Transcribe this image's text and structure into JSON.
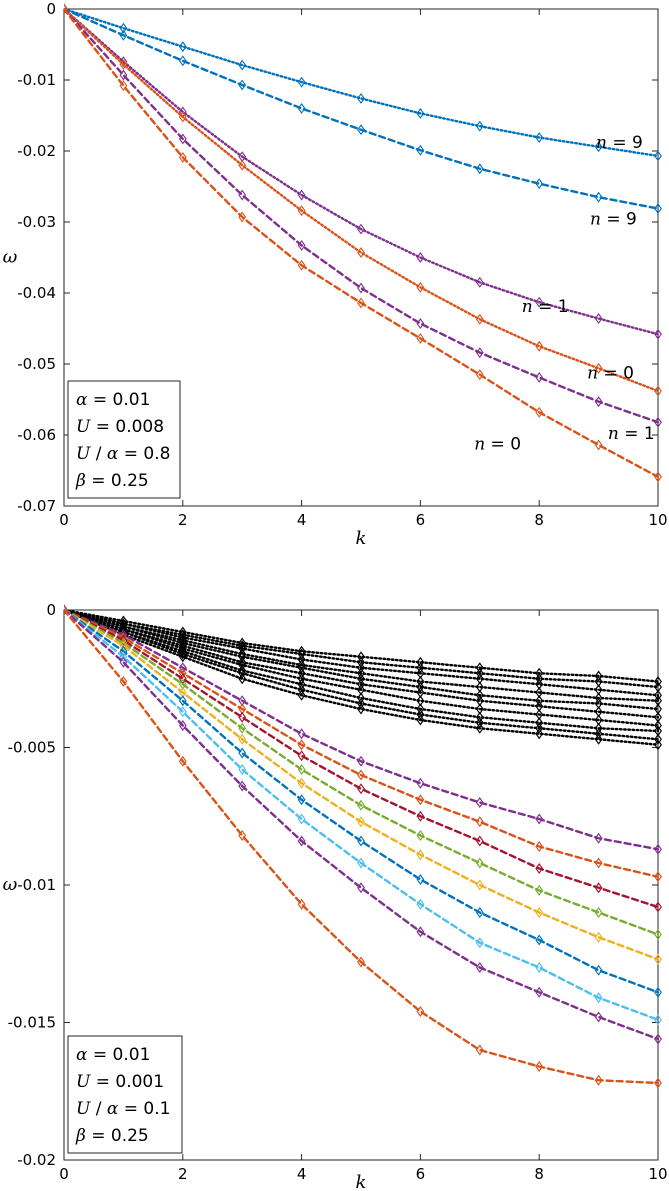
{
  "chart_data": [
    {
      "type": "line",
      "xlabel": "k",
      "ylabel": "ω",
      "xlim": [
        0,
        10
      ],
      "ylim": [
        -0.07,
        0
      ],
      "xticks": [
        "0",
        "2",
        "4",
        "6",
        "8",
        "10"
      ],
      "yticks": [
        "0",
        "-0.01",
        "-0.02",
        "-0.03",
        "-0.04",
        "-0.05",
        "-0.06",
        "-0.07"
      ],
      "grid": false,
      "legend_box": {
        "placement": "bottom-left",
        "lines": [
          {
            "sym": "α",
            "rest": " = 0.01"
          },
          {
            "sym": "U",
            "rest": " = 0.008"
          },
          {
            "sym": "U",
            "mid": " / ",
            "sym2": "α",
            "rest": " = 0.8"
          },
          {
            "sym": "β",
            "rest": " = 0.25"
          }
        ]
      },
      "x": [
        0,
        1,
        2,
        3,
        4,
        5,
        6,
        7,
        8,
        9,
        10
      ],
      "series": [
        {
          "color": "#0072BD",
          "style": "dotted",
          "values": [
            0,
            -0.0027,
            -0.0053,
            -0.0079,
            -0.0103,
            -0.0126,
            -0.0147,
            -0.0165,
            -0.0181,
            -0.0194,
            -0.0207
          ]
        },
        {
          "color": "#0072BD",
          "style": "dashed",
          "values": [
            0,
            -0.0037,
            -0.0073,
            -0.0107,
            -0.014,
            -0.017,
            -0.0199,
            -0.0225,
            -0.0246,
            -0.0265,
            -0.0281
          ]
        },
        {
          "color": "#7E2F8E",
          "style": "dotted",
          "values": [
            0,
            -0.0074,
            -0.0145,
            -0.0208,
            -0.0262,
            -0.031,
            -0.035,
            -0.0385,
            -0.0413,
            -0.0436,
            -0.0458
          ]
        },
        {
          "color": "#D95319",
          "style": "dotted",
          "values": [
            0,
            -0.0078,
            -0.0152,
            -0.022,
            -0.0284,
            -0.0343,
            -0.0392,
            -0.0437,
            -0.0475,
            -0.0506,
            -0.0538
          ]
        },
        {
          "color": "#7E2F8E",
          "style": "dashed",
          "values": [
            0,
            -0.0093,
            -0.0183,
            -0.0262,
            -0.0333,
            -0.0393,
            -0.0443,
            -0.0484,
            -0.0519,
            -0.0553,
            -0.0582
          ]
        },
        {
          "color": "#D95319",
          "style": "dashed",
          "values": [
            0,
            -0.0108,
            -0.0209,
            -0.0293,
            -0.0361,
            -0.0414,
            -0.0464,
            -0.0515,
            -0.0568,
            -0.0614,
            -0.0659
          ]
        }
      ],
      "annotations": [
        {
          "text": "n = 9",
          "x": 9.35,
          "y": -0.0187
        },
        {
          "text": "n = 9",
          "x": 9.25,
          "y": -0.0295
        },
        {
          "text": "n = 1",
          "x": 8.1,
          "y": -0.0418
        },
        {
          "text": "n = 0",
          "x": 9.2,
          "y": -0.0512
        },
        {
          "text": "n = 1",
          "x": 9.55,
          "y": -0.0597
        },
        {
          "text": "n = 0",
          "x": 7.3,
          "y": -0.0612
        }
      ]
    },
    {
      "type": "line",
      "xlabel": "k",
      "ylabel": "ω",
      "xlim": [
        0,
        10
      ],
      "ylim": [
        -0.02,
        0
      ],
      "xticks": [
        "0",
        "2",
        "4",
        "6",
        "8",
        "10"
      ],
      "yticks": [
        "0",
        "-0.005",
        "-0.01",
        "-0.015",
        "-0.02"
      ],
      "grid": false,
      "legend_box": {
        "placement": "bottom-left",
        "lines": [
          {
            "sym": "α",
            "rest": " = 0.01"
          },
          {
            "sym": "U",
            "rest": " = 0.001"
          },
          {
            "sym": "U",
            "mid": " / ",
            "sym2": "α",
            "rest": " = 0.1"
          },
          {
            "sym": "β",
            "rest": " = 0.25"
          }
        ]
      },
      "x": [
        0,
        1,
        2,
        3,
        4,
        5,
        6,
        7,
        8,
        9,
        10
      ],
      "series": [
        {
          "color": "#000000",
          "style": "dotted",
          "values": [
            0,
            -0.0004,
            -0.0008,
            -0.0012,
            -0.0015,
            -0.0017,
            -0.0019,
            -0.0021,
            -0.0023,
            -0.0024,
            -0.0026
          ]
        },
        {
          "color": "#000000",
          "style": "dotted",
          "values": [
            0,
            -0.0005,
            -0.0009,
            -0.0013,
            -0.0016,
            -0.0019,
            -0.0021,
            -0.0023,
            -0.0025,
            -0.0026,
            -0.0028
          ]
        },
        {
          "color": "#000000",
          "style": "dotted",
          "values": [
            0,
            -0.0005,
            -0.001,
            -0.0014,
            -0.0018,
            -0.0021,
            -0.0023,
            -0.0025,
            -0.0027,
            -0.0029,
            -0.0031
          ]
        },
        {
          "color": "#000000",
          "style": "dotted",
          "values": [
            0,
            -0.0006,
            -0.0011,
            -0.0016,
            -0.002,
            -0.0023,
            -0.0026,
            -0.0028,
            -0.003,
            -0.0032,
            -0.0033
          ]
        },
        {
          "color": "#000000",
          "style": "dotted",
          "values": [
            0,
            -0.0006,
            -0.0012,
            -0.0017,
            -0.0021,
            -0.0025,
            -0.0028,
            -0.0031,
            -0.0033,
            -0.0034,
            -0.0036
          ]
        },
        {
          "color": "#000000",
          "style": "dotted",
          "values": [
            0,
            -0.0007,
            -0.0013,
            -0.0019,
            -0.0023,
            -0.0027,
            -0.003,
            -0.0033,
            -0.0035,
            -0.0037,
            -0.0039
          ]
        },
        {
          "color": "#000000",
          "style": "dotted",
          "values": [
            0,
            -0.0007,
            -0.0014,
            -0.002,
            -0.0025,
            -0.0029,
            -0.0033,
            -0.0036,
            -0.0038,
            -0.004,
            -0.0042
          ]
        },
        {
          "color": "#000000",
          "style": "dotted",
          "values": [
            0,
            -0.0008,
            -0.0015,
            -0.0022,
            -0.0027,
            -0.0032,
            -0.0036,
            -0.0039,
            -0.0041,
            -0.0043,
            -0.0044
          ]
        },
        {
          "color": "#000000",
          "style": "dotted",
          "values": [
            0,
            -0.0008,
            -0.0016,
            -0.0023,
            -0.0029,
            -0.0034,
            -0.0038,
            -0.0041,
            -0.0043,
            -0.0045,
            -0.0047
          ]
        },
        {
          "color": "#000000",
          "style": "dotted",
          "values": [
            0,
            -0.0009,
            -0.0017,
            -0.0025,
            -0.0031,
            -0.0036,
            -0.004,
            -0.0043,
            -0.0045,
            -0.0047,
            -0.0049
          ]
        },
        {
          "color": "#7E2F8E",
          "style": "dashed",
          "values": [
            0,
            -0.0009,
            -0.0021,
            -0.0033,
            -0.0045,
            -0.0055,
            -0.0063,
            -0.007,
            -0.0076,
            -0.0083,
            -0.0087
          ]
        },
        {
          "color": "#D95319",
          "style": "dashed",
          "values": [
            0,
            -0.001,
            -0.0023,
            -0.0036,
            -0.0049,
            -0.006,
            -0.0069,
            -0.0077,
            -0.0086,
            -0.0092,
            -0.0097
          ]
        },
        {
          "color": "#A2142F",
          "style": "dashed",
          "values": [
            0,
            -0.0011,
            -0.0025,
            -0.0039,
            -0.0053,
            -0.0065,
            -0.0075,
            -0.0084,
            -0.0094,
            -0.0101,
            -0.0108
          ]
        },
        {
          "color": "#77AC30",
          "style": "dashed",
          "values": [
            0,
            -0.0012,
            -0.0027,
            -0.0043,
            -0.0058,
            -0.0071,
            -0.0082,
            -0.0092,
            -0.0102,
            -0.011,
            -0.0118
          ]
        },
        {
          "color": "#EDB120",
          "style": "dashed",
          "values": [
            0,
            -0.0013,
            -0.003,
            -0.0047,
            -0.0063,
            -0.0077,
            -0.0089,
            -0.01,
            -0.011,
            -0.0119,
            -0.0127
          ]
        },
        {
          "color": "#0072BD",
          "style": "dashed",
          "values": [
            0,
            -0.0015,
            -0.0033,
            -0.0052,
            -0.0069,
            -0.0084,
            -0.0098,
            -0.011,
            -0.012,
            -0.0131,
            -0.0139
          ]
        },
        {
          "color": "#4DBEEE",
          "style": "dashed",
          "values": [
            0,
            -0.0017,
            -0.0037,
            -0.0058,
            -0.0076,
            -0.0092,
            -0.0107,
            -0.0121,
            -0.013,
            -0.0141,
            -0.0149
          ]
        },
        {
          "color": "#7E2F8E",
          "style": "dashed",
          "values": [
            0,
            -0.0019,
            -0.0042,
            -0.0064,
            -0.0084,
            -0.0101,
            -0.0117,
            -0.013,
            -0.0139,
            -0.0148,
            -0.0156
          ]
        },
        {
          "color": "#D95319",
          "style": "dashed",
          "values": [
            0,
            -0.0026,
            -0.0055,
            -0.0082,
            -0.0107,
            -0.0128,
            -0.0146,
            -0.016,
            -0.0166,
            -0.0171,
            -0.0172
          ]
        }
      ],
      "annotations": []
    }
  ]
}
